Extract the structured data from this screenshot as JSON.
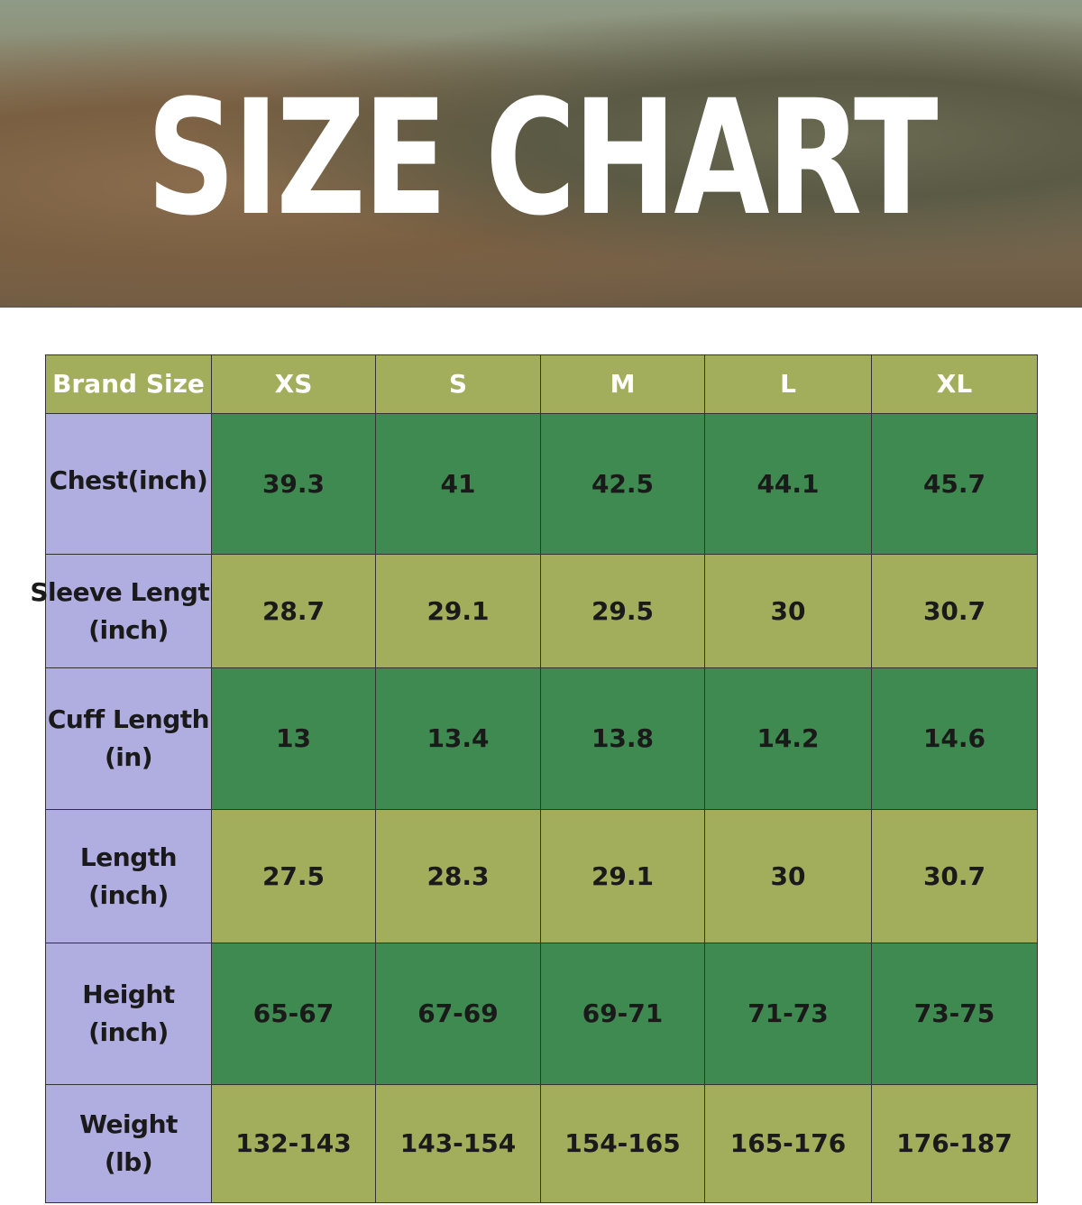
{
  "header": {
    "title": "SIZE CHART"
  },
  "table": {
    "columns": [
      "Brand Size",
      "XS",
      "S",
      "M",
      "L",
      "XL"
    ],
    "rows": [
      {
        "label": [
          "Chest(inch)"
        ],
        "cells": [
          "39.3",
          "41",
          "42.5",
          "44.1",
          "45.7"
        ]
      },
      {
        "label": [
          "Sleeve Length",
          "(inch)"
        ],
        "cells": [
          "28.7",
          "29.1",
          "29.5",
          "30",
          "30.7"
        ]
      },
      {
        "label": [
          "Cuff Length",
          "(in)"
        ],
        "cells": [
          "13",
          "13.4",
          "13.8",
          "14.2",
          "14.6"
        ]
      },
      {
        "label": [
          "Length",
          "(inch)"
        ],
        "cells": [
          "27.5",
          "28.3",
          "29.1",
          "30",
          "30.7"
        ]
      },
      {
        "label": [
          "Height",
          "(inch)"
        ],
        "cells": [
          "65-67",
          "67-69",
          "69-71",
          "71-73",
          "73-75"
        ]
      },
      {
        "label": [
          "Weight",
          "(lb)"
        ],
        "cells": [
          "132-143",
          "143-154",
          "154-165",
          "165-176",
          "176-187"
        ]
      }
    ]
  }
}
